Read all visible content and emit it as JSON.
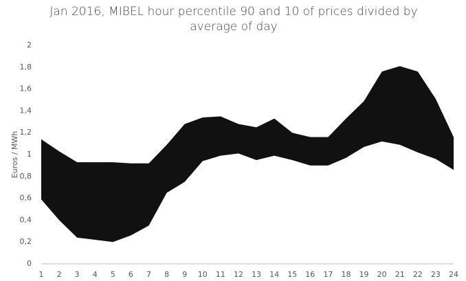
{
  "chart_data": {
    "type": "band",
    "title": "Jan 2016, MIBEL hour percentile 90 and 10 of prices divided by average of day",
    "y_label": "Euros / MWh",
    "categories": [
      "1",
      "2",
      "3",
      "4",
      "5",
      "6",
      "7",
      "8",
      "9",
      "10",
      "11",
      "12",
      "13",
      "14",
      "15",
      "16",
      "17",
      "18",
      "19",
      "20",
      "21",
      "22",
      "23",
      "24"
    ],
    "series": [
      {
        "color": "#111111",
        "values": [
          1.14,
          1.03,
          0.93,
          0.93,
          0.93,
          0.92,
          0.92,
          1.09,
          1.28,
          1.34,
          1.35,
          1.28,
          1.25,
          1.33,
          1.2,
          1.16,
          1.16,
          1.33,
          1.49,
          1.76,
          1.81,
          1.76,
          1.51,
          1.16
        ]
      },
      {
        "color": "#ffffff",
        "values": [
          0.59,
          0.4,
          0.24,
          0.22,
          0.2,
          0.26,
          0.35,
          0.65,
          0.75,
          0.94,
          0.99,
          1.01,
          0.95,
          0.99,
          0.95,
          0.9,
          0.9,
          0.97,
          1.07,
          1.12,
          1.09,
          1.02,
          0.96,
          0.86
        ]
      }
    ],
    "ylim": [
      0,
      2
    ],
    "yticks": [
      0,
      {
        "value": 0.2,
        "label": "0,2"
      },
      {
        "value": 0.4,
        "label": "0,4"
      },
      {
        "value": 0.6,
        "label": "0,6"
      },
      {
        "value": 0.8,
        "label": "0,8"
      },
      1,
      {
        "value": 1.2,
        "label": "1,2"
      },
      {
        "value": 1.4,
        "label": "1,4"
      },
      {
        "value": 1.6,
        "label": "1,6"
      },
      {
        "value": 1.8,
        "label": "1,8"
      },
      2
    ],
    "grid": false
  }
}
